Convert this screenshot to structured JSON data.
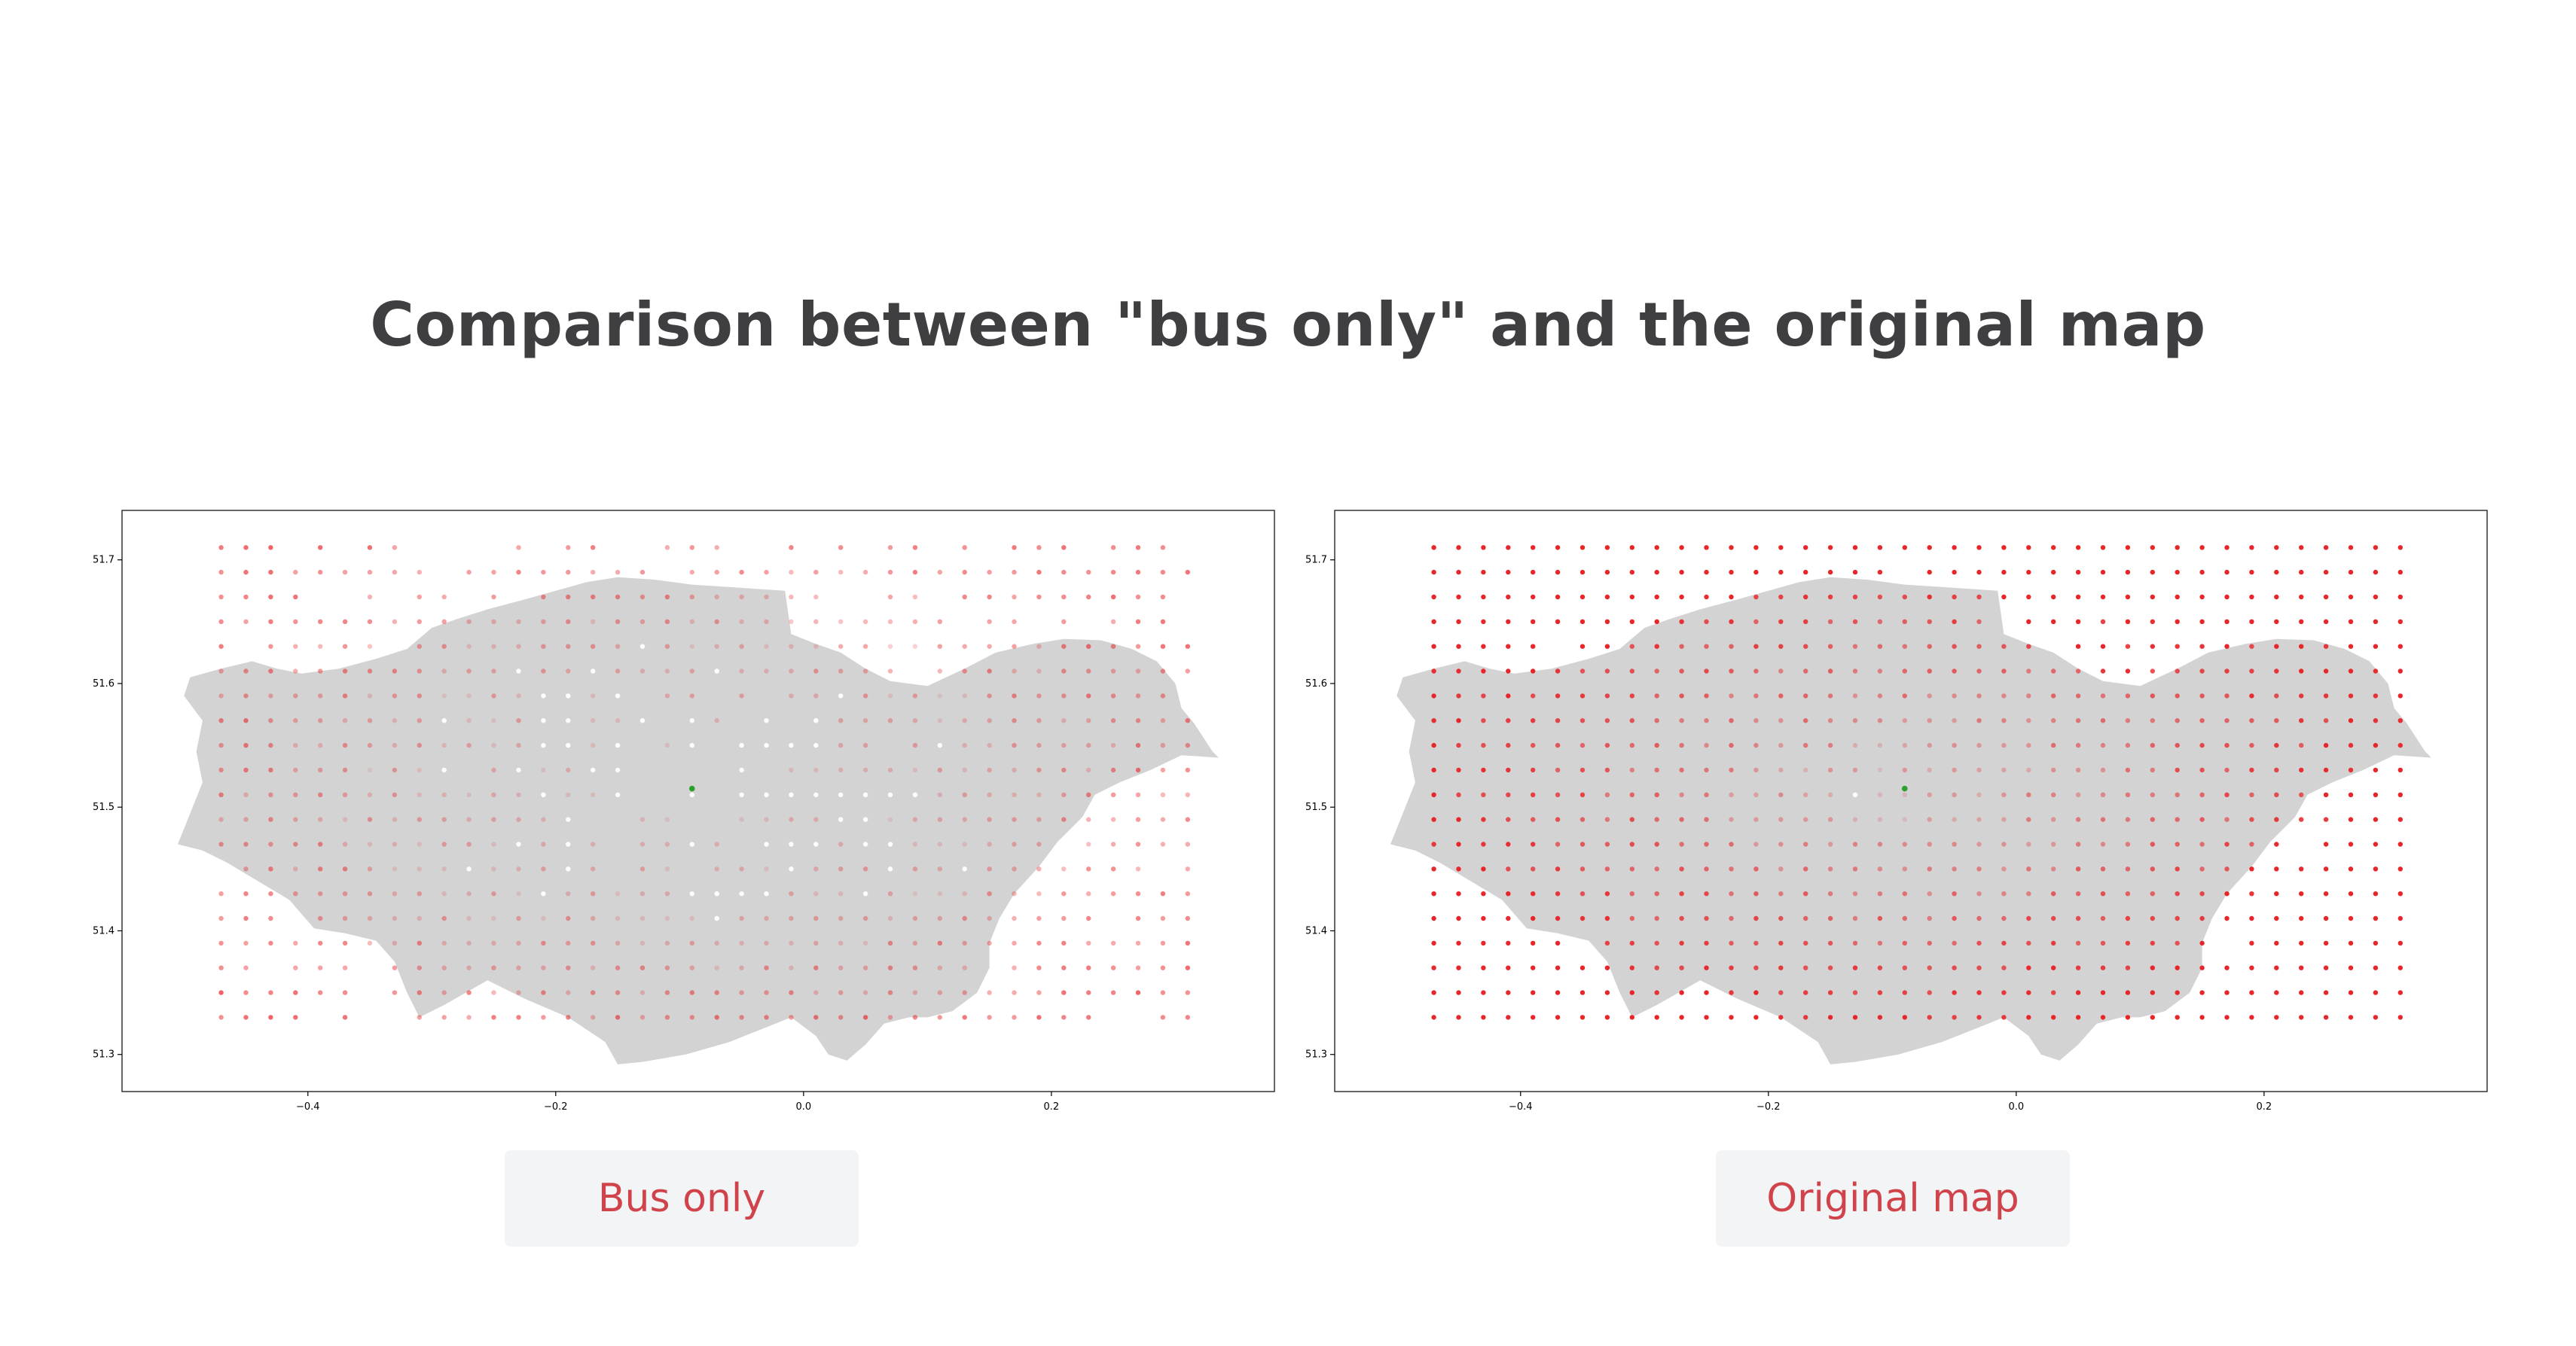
{
  "title": "Comparison between \"bus only\" and the original map",
  "panels": [
    {
      "caption": "Bus only",
      "variant": "bus"
    },
    {
      "caption": "Original map",
      "variant": "original"
    }
  ],
  "chart_data": [
    {
      "type": "scatter",
      "title": "",
      "xlabel": "",
      "ylabel": "",
      "xlim": [
        -0.55,
        0.38
      ],
      "ylim": [
        51.27,
        51.74
      ],
      "x_ticks": [
        "−0.4",
        "−0.2",
        "0.0",
        "0.2"
      ],
      "y_ticks": [
        "51.3",
        "51.4",
        "51.5",
        "51.6",
        "51.7"
      ],
      "grid": false,
      "grid_points": {
        "x_start": -0.47,
        "x_end": 0.31,
        "x_step": 0.02,
        "y_start": 51.33,
        "y_end": 51.71,
        "y_step": 0.02
      },
      "origin_point": {
        "x": -0.09,
        "y": 51.515,
        "color": "#2ca02c"
      },
      "point_color": "#e8262a",
      "background_shape_color": "#d3d3d3"
    },
    {
      "type": "scatter",
      "title": "",
      "xlabel": "",
      "ylabel": "",
      "xlim": [
        -0.55,
        0.38
      ],
      "ylim": [
        51.27,
        51.74
      ],
      "x_ticks": [
        "−0.4",
        "−0.2",
        "0.0",
        "0.2"
      ],
      "y_ticks": [
        "51.3",
        "51.4",
        "51.5",
        "51.6",
        "51.7"
      ],
      "grid": false,
      "grid_points": {
        "x_start": -0.47,
        "x_end": 0.31,
        "x_step": 0.02,
        "y_start": 51.33,
        "y_end": 51.71,
        "y_step": 0.02
      },
      "origin_point": {
        "x": -0.09,
        "y": 51.515,
        "color": "#2ca02c"
      },
      "point_color": "#e8262a",
      "background_shape_color": "#d3d3d3"
    }
  ]
}
